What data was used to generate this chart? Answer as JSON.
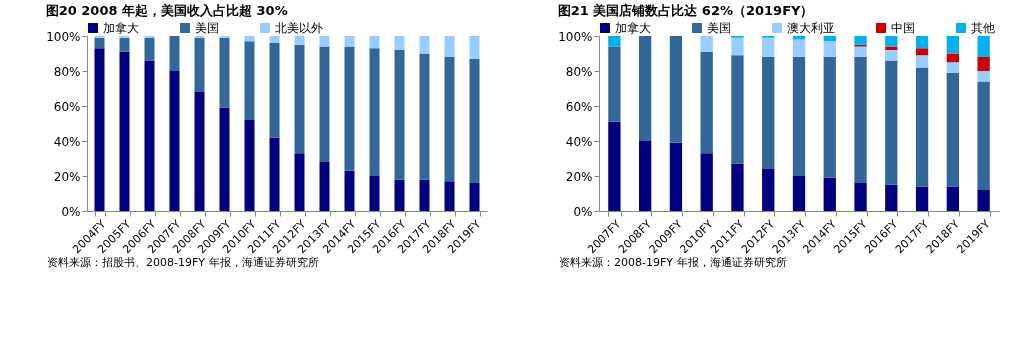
{
  "chart_data": [
    {
      "type": "bar",
      "title": "图20 2008 年起，美国收入占比超 30%",
      "stacked": true,
      "legend": "top",
      "grid": false,
      "categories": [
        "2004FY",
        "2005FY",
        "2006FY",
        "2007FY",
        "2008FY",
        "2009FY",
        "2010FY",
        "2011FY",
        "2012FY",
        "2013FY",
        "2014FY",
        "2015FY",
        "2016FY",
        "2017FY",
        "2018FY",
        "2019FY"
      ],
      "series": [
        {
          "name": "加拿大",
          "color": "#000080",
          "values": [
            93,
            91,
            86,
            80,
            68,
            59,
            52,
            42,
            33,
            28,
            23,
            20,
            18,
            18,
            17,
            16
          ]
        },
        {
          "name": "美国",
          "color": "#336699",
          "values": [
            6,
            8,
            13,
            20,
            31,
            40,
            45,
            54,
            62,
            66,
            71,
            73,
            74,
            72,
            71,
            71
          ]
        },
        {
          "name": "北美以外",
          "color": "#99ccff",
          "values": [
            1,
            1,
            1,
            0,
            1,
            1,
            3,
            4,
            5,
            6,
            6,
            7,
            8,
            10,
            12,
            13
          ]
        }
      ],
      "ylim": [
        0,
        100
      ],
      "yticks": [
        {
          "value": 0,
          "label": "0%"
        },
        {
          "value": 20,
          "label": "20%"
        },
        {
          "value": 40,
          "label": "40%"
        },
        {
          "value": 60,
          "label": "60%"
        },
        {
          "value": 80,
          "label": "80%"
        },
        {
          "value": 100,
          "label": "100%"
        }
      ],
      "annotations": [
        "资料来源：招股书、2008-19FY 年报，海通证券研究所"
      ]
    },
    {
      "type": "bar",
      "title": "图21 美国店铺数占比达 62%（2019FY）",
      "stacked": true,
      "legend": "top",
      "grid": false,
      "categories": [
        "2007FY",
        "2008FY",
        "2009FY",
        "2010FY",
        "2011FY",
        "2012FY",
        "2013FY",
        "2014FY",
        "2015FY",
        "2016FY",
        "2017FY",
        "2018FY",
        "2019FY"
      ],
      "series": [
        {
          "name": "加拿大",
          "color": "#000080",
          "values": [
            51,
            40,
            39,
            33,
            27,
            24,
            20,
            19,
            16,
            15,
            14,
            14,
            12
          ]
        },
        {
          "name": "美国",
          "color": "#336699",
          "values": [
            43,
            60,
            61,
            58,
            62,
            64,
            68,
            69,
            72,
            71,
            68,
            65,
            62
          ]
        },
        {
          "name": "澳大利亚",
          "color": "#99ccff",
          "values": [
            0,
            0,
            0,
            9,
            10,
            11,
            10,
            9,
            6,
            6,
            7,
            6,
            6
          ]
        },
        {
          "name": "中国",
          "color": "#cc0000",
          "values": [
            0,
            0,
            0,
            0,
            0,
            0,
            0,
            0,
            1,
            2,
            4,
            5,
            8
          ]
        },
        {
          "name": "其他",
          "color": "#00b0f0",
          "values": [
            6,
            0,
            0,
            0,
            1,
            1,
            2,
            3,
            5,
            6,
            7,
            10,
            12
          ]
        }
      ],
      "ylim": [
        0,
        100
      ],
      "yticks": [
        {
          "value": 0,
          "label": "0%"
        },
        {
          "value": 20,
          "label": "20%"
        },
        {
          "value": 40,
          "label": "40%"
        },
        {
          "value": 60,
          "label": "60%"
        },
        {
          "value": 80,
          "label": "80%"
        },
        {
          "value": 100,
          "label": "100%"
        }
      ],
      "annotations": [
        "资料来源：2008-19FY 年报，海通证券研究所"
      ]
    }
  ]
}
